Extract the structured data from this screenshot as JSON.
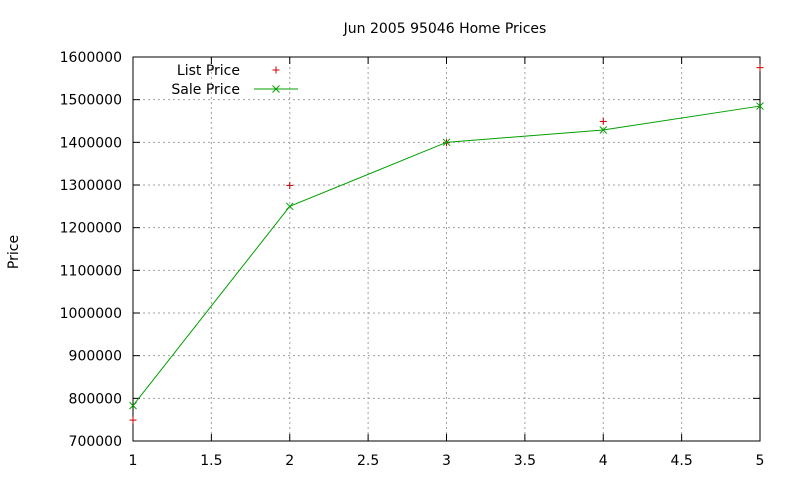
{
  "chart_data": {
    "type": "line",
    "title": "Jun 2005 95046 Home Prices",
    "xlabel": "",
    "ylabel": "Price",
    "xlim": [
      1,
      5
    ],
    "ylim": [
      700000,
      1600000
    ],
    "x_ticks": [
      1,
      1.5,
      2,
      2.5,
      3,
      3.5,
      4,
      4.5,
      5
    ],
    "x_tick_labels": [
      "1",
      "1.5",
      "2",
      "2.5",
      "3",
      "3.5",
      "4",
      "4.5",
      "5"
    ],
    "y_ticks": [
      700000,
      800000,
      900000,
      1000000,
      1100000,
      1200000,
      1300000,
      1400000,
      1500000,
      1600000
    ],
    "y_tick_labels": [
      "700000",
      "800000",
      "900000",
      "1000000",
      "1100000",
      "1200000",
      "1300000",
      "1400000",
      "1500000",
      "1600000"
    ],
    "grid": true,
    "legend_position": "top-left",
    "series": [
      {
        "name": "List Price",
        "color": "#cc0000",
        "style": "points",
        "marker": "plus",
        "x": [
          1,
          2,
          3,
          4,
          5
        ],
        "y": [
          749000,
          1299000,
          1399000,
          1449000,
          1575000
        ]
      },
      {
        "name": "Sale Price",
        "color": "#00a000",
        "style": "linespoints",
        "marker": "cross",
        "x": [
          1,
          2,
          3,
          4,
          5
        ],
        "y": [
          783000,
          1250000,
          1400000,
          1429000,
          1485000
        ]
      }
    ]
  }
}
